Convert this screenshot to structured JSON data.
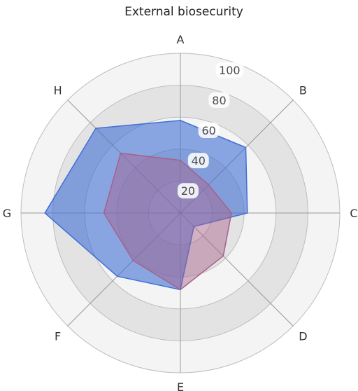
{
  "chart_data": {
    "type": "radar",
    "title": "External biosecurity",
    "categories": [
      "A",
      "B",
      "C",
      "D",
      "E",
      "F",
      "G",
      "H"
    ],
    "rlim": [
      0,
      100
    ],
    "rings": [
      20,
      40,
      60,
      80,
      100
    ],
    "ring_labels": [
      "20",
      "40",
      "60",
      "80",
      "100"
    ],
    "series": [
      {
        "values": [
          58,
          58,
          42,
          12,
          48,
          56,
          85,
          75
        ],
        "color": "#3f6fd6",
        "opacity": 0.6
      },
      {
        "values": [
          33,
          25,
          32,
          38,
          48,
          42,
          48,
          53
        ],
        "color": "#a8608a",
        "opacity": 0.45
      }
    ],
    "colors": {
      "band_dark": "#e3e3e3",
      "band_light": "#f4f4f4",
      "ring_line": "#bdbdbd",
      "spoke": "#999999"
    },
    "grid": true
  }
}
